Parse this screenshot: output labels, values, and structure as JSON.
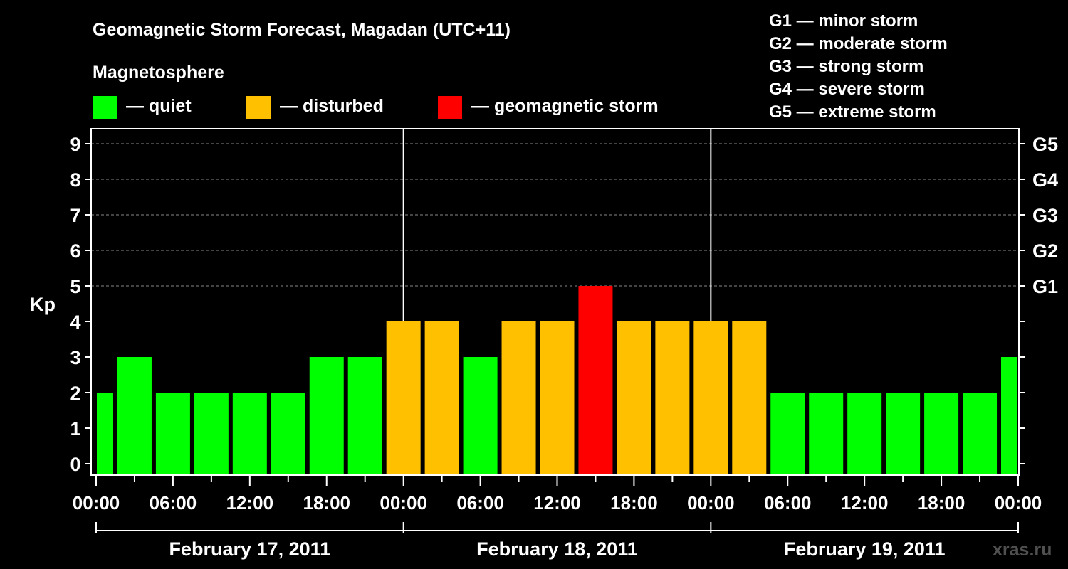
{
  "chart_data": {
    "type": "bar",
    "title": "Geomagnetic Storm Forecast, Magadan (UTC+11)",
    "legend_title": "Magnetosphere",
    "legend": [
      {
        "key": "quiet",
        "label": "— quiet",
        "color": "#00ff00"
      },
      {
        "key": "disturbed",
        "label": "— disturbed",
        "color": "#ffc000"
      },
      {
        "key": "storm",
        "label": "— geomagnetic storm",
        "color": "#ff0000"
      }
    ],
    "storm_scale": [
      "G1 — minor storm",
      "G2 — moderate storm",
      "G3 — strong storm",
      "G4 — severe storm",
      "G5 — extreme storm"
    ],
    "ylabel": "Kp",
    "ylim": [
      0,
      9
    ],
    "yticks": [
      "0",
      "1",
      "2",
      "3",
      "4",
      "5",
      "6",
      "7",
      "8",
      "9"
    ],
    "right_ticks": [
      {
        "kp": 5,
        "label": "G1"
      },
      {
        "kp": 6,
        "label": "G2"
      },
      {
        "kp": 7,
        "label": "G3"
      },
      {
        "kp": 8,
        "label": "G4"
      },
      {
        "kp": 9,
        "label": "G5"
      }
    ],
    "xticks": [
      "00:00",
      "06:00",
      "12:00",
      "18:00",
      "00:00",
      "06:00",
      "12:00",
      "18:00",
      "00:00",
      "06:00",
      "12:00",
      "18:00",
      "00:00"
    ],
    "days": [
      "February 17, 2011",
      "February 18, 2011",
      "February 19, 2011"
    ],
    "x": [
      "00:00",
      "03:00",
      "06:00",
      "09:00",
      "12:00",
      "15:00",
      "18:00",
      "21:00",
      "00:00",
      "03:00",
      "06:00",
      "09:00",
      "12:00",
      "15:00",
      "18:00",
      "21:00",
      "00:00",
      "03:00",
      "06:00",
      "09:00",
      "12:00",
      "15:00",
      "18:00",
      "21:00",
      "00:00"
    ],
    "values": [
      2,
      3,
      2,
      2,
      2,
      2,
      3,
      3,
      4,
      4,
      3,
      4,
      4,
      5,
      4,
      4,
      4,
      4,
      2,
      2,
      2,
      2,
      2,
      2,
      3
    ],
    "grid_lines": [
      5,
      6,
      7,
      8,
      9
    ],
    "watermark": "xras.ru"
  }
}
